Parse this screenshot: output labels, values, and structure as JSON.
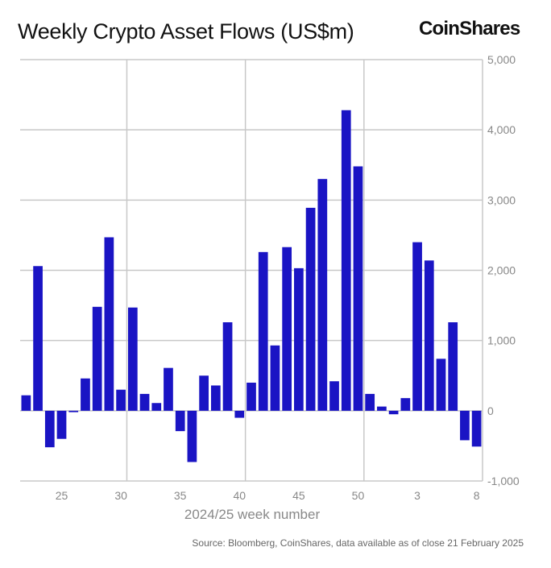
{
  "header": {
    "title": "Weekly Crypto Asset Flows (US$m)",
    "logo": "CoinShares"
  },
  "footer": {
    "source": "Source: Bloomberg, CoinShares, data available as of close 21 February 2025"
  },
  "colors": {
    "bar": "#1a14c4",
    "grid": "#c8c8c8",
    "text": "#888888"
  },
  "chart_data": {
    "type": "bar",
    "title": "Weekly Crypto Asset Flows (US$m)",
    "xlabel": "2024/25 week number",
    "ylabel": "",
    "ylim": [
      -1000,
      5000
    ],
    "y_ticks": [
      -1000,
      0,
      1000,
      2000,
      3000,
      4000,
      5000
    ],
    "y_tick_labels": [
      "-1,000",
      "0",
      "1,000",
      "2,000",
      "3,000",
      "4,000",
      "5,000"
    ],
    "y_axis_side": "right",
    "x_tick_labels": [
      "25",
      "30",
      "35",
      "40",
      "45",
      "50",
      "3",
      "8"
    ],
    "grid": true,
    "categories": [
      "22",
      "23",
      "24",
      "25",
      "26",
      "27",
      "28",
      "29",
      "30",
      "31",
      "32",
      "33",
      "34",
      "35",
      "36",
      "37",
      "38",
      "39",
      "40",
      "41",
      "42",
      "43",
      "44",
      "45",
      "46",
      "47",
      "48",
      "49",
      "50",
      "51",
      "52",
      "1",
      "2",
      "3",
      "4",
      "5",
      "6",
      "7",
      "8"
    ],
    "values": [
      220,
      2060,
      -520,
      -400,
      -20,
      460,
      1480,
      2470,
      300,
      1470,
      240,
      110,
      610,
      -290,
      -730,
      500,
      360,
      1260,
      -100,
      400,
      2260,
      930,
      2330,
      2030,
      2890,
      3300,
      420,
      4280,
      3480,
      240,
      60,
      -50,
      180,
      2400,
      2140,
      740,
      1260,
      -420,
      -510
    ]
  }
}
